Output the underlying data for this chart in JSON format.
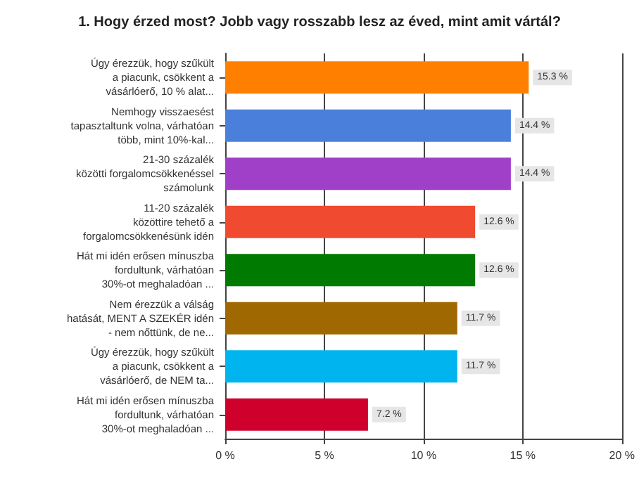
{
  "chart_data": {
    "type": "bar",
    "orientation": "horizontal",
    "title": "1. Hogy érzed most? Jobb vagy rosszabb lesz az éved, mint amit vártál?",
    "categories": [
      "Úgy érezzük, hogy szűkült\na piacunk, csökkent a\nvásárlóerő, 10 % alat...",
      "Nemhogy visszaesést\ntapasztaltunk volna, várhatóan\ntöbb, mint 10%-kal...",
      "21-30 százalék\nközötti forgalomcsökkenéssel\nszámolunk",
      "11-20 százalék\nközöttire tehető a\nforgalomcsökkenésünk idén",
      "Hát mi idén erősen mínuszba\nfordultunk, várhatóan\n30%-ot meghaladóan ...",
      "Nem érezzük a válság\nhatását, MENT A SZEKÉR idén\n- nem nőttünk, de ne...",
      "Úgy érezzük, hogy szűkült\na piacunk, csökkent a\nvásárlóerő, de NEM ta...",
      "Hát mi idén erősen mínuszba\nfordultunk, várhatóan\n30%-ot meghaladóan ..."
    ],
    "values": [
      15.3,
      14.4,
      14.4,
      12.6,
      12.6,
      11.7,
      11.7,
      7.2
    ],
    "value_labels": [
      "15.3 %",
      "14.4 %",
      "14.4 %",
      "12.6 %",
      "12.6 %",
      "11.7 %",
      "11.7 %",
      "7.2 %"
    ],
    "colors": [
      "#ff8000",
      "#4a80dc",
      "#a040c8",
      "#f04a30",
      "#007a00",
      "#a06800",
      "#00b4f0",
      "#d0002c"
    ],
    "xlim": [
      0,
      20
    ],
    "xticks": [
      {
        "value": 0,
        "label": "0 %"
      },
      {
        "value": 5,
        "label": "5 %"
      },
      {
        "value": 10,
        "label": "10 %"
      },
      {
        "value": 15,
        "label": "15 %"
      },
      {
        "value": 20,
        "label": "20 %"
      }
    ],
    "grid": "x"
  }
}
